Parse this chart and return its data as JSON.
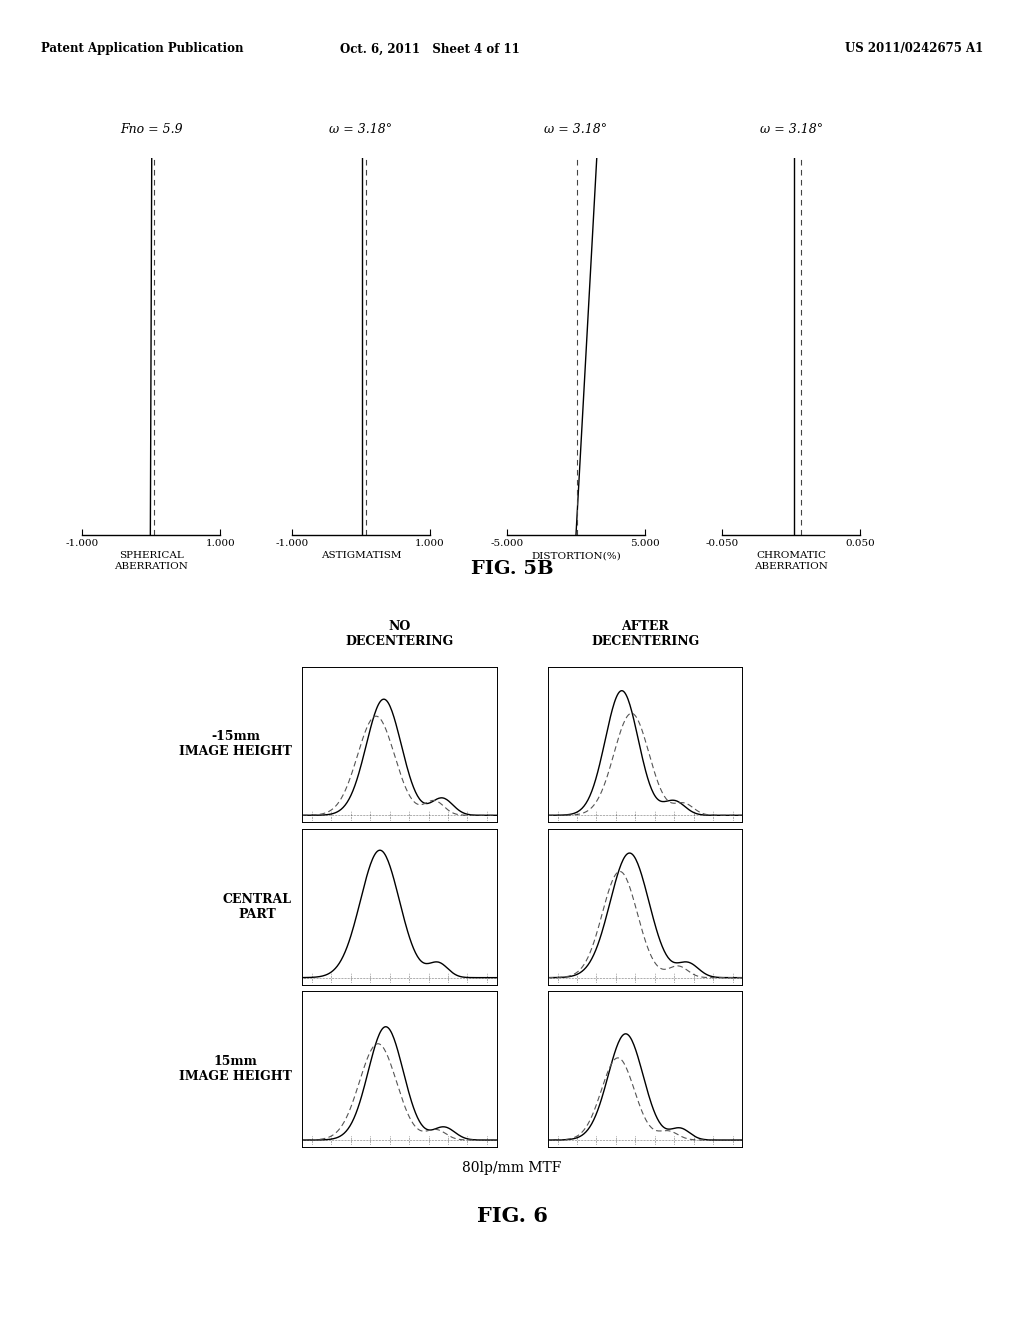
{
  "header_left": "Patent Application Publication",
  "header_center": "Oct. 6, 2011   Sheet 4 of 11",
  "header_right": "US 2011/0242675 A1",
  "fig5b_title": "FIG. 5B",
  "fig6_title": "FIG. 6",
  "fig6_subtitle": "80lp/mm MTF",
  "panel1_label": "Fno = 5.9",
  "panel2_label": "ω = 3.18°",
  "panel3_label": "ω = 3.18°",
  "panel4_label": "ω = 3.18°",
  "xlabel1": "SPHERICAL\nABERRATION",
  "xlabel2": "ASTIGMATISM",
  "xlabel3": "DISTORTION(%)",
  "xlabel4": "CHROMATIC\nABERRATION",
  "xlim1": [
    -1.0,
    1.0
  ],
  "xlim2": [
    -1.0,
    1.0
  ],
  "xlim3": [
    -5.0,
    5.0
  ],
  "xlim4": [
    -0.05,
    0.05
  ],
  "xtick_labels1": [
    "-1.000",
    "1.000"
  ],
  "xtick_labels2": [
    "-1.000",
    "1.000"
  ],
  "xtick_labels3": [
    "-5.000",
    "5.000"
  ],
  "xtick_labels4": [
    "-0.050",
    "0.050"
  ],
  "row_labels": [
    "-15mm\nIMAGE HEIGHT",
    "CENTRAL\nPART",
    "15mm\nIMAGE HEIGHT"
  ],
  "col_labels": [
    "NO\nDECENTERING",
    "AFTER\nDECENTERING"
  ],
  "bg_color": "#ffffff"
}
